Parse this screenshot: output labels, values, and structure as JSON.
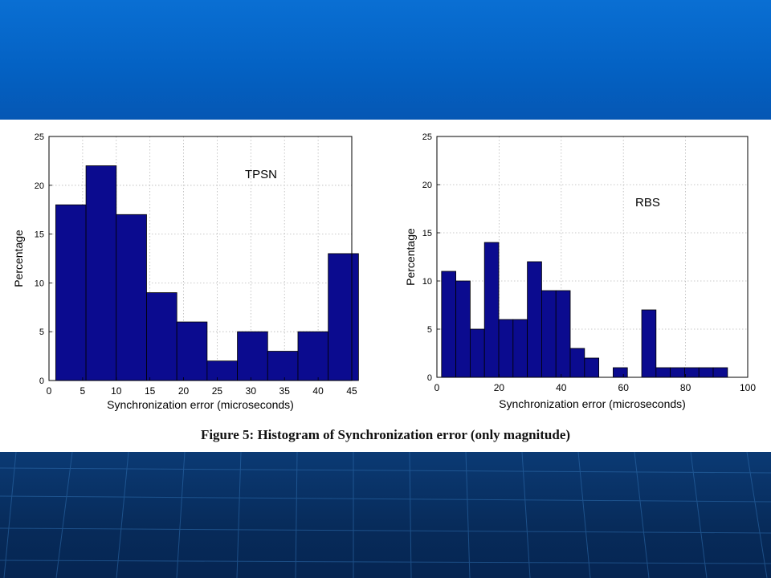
{
  "caption": "Figure 5: Histogram of Synchronization error (only magnitude)",
  "chart_data": [
    {
      "type": "bar",
      "annotation": "TPSN",
      "xlabel": "Synchronization error (microseconds)",
      "ylabel": "Percentage",
      "xlim": [
        0,
        45
      ],
      "ylim": [
        0,
        25
      ],
      "xticks": [
        0,
        5,
        10,
        15,
        20,
        25,
        30,
        35,
        40,
        45
      ],
      "yticks": [
        0,
        5,
        10,
        15,
        20,
        25
      ],
      "grid": true,
      "bar_color": "#0b0b8f",
      "bins": [
        {
          "x0": 1,
          "x1": 5.5,
          "value": 18
        },
        {
          "x0": 5.5,
          "x1": 10,
          "value": 22
        },
        {
          "x0": 10,
          "x1": 14.5,
          "value": 17
        },
        {
          "x0": 14.5,
          "x1": 19,
          "value": 9
        },
        {
          "x0": 19,
          "x1": 23.5,
          "value": 6
        },
        {
          "x0": 23.5,
          "x1": 28,
          "value": 2
        },
        {
          "x0": 28,
          "x1": 32.5,
          "value": 5
        },
        {
          "x0": 32.5,
          "x1": 37,
          "value": 3
        },
        {
          "x0": 37,
          "x1": 41.5,
          "value": 5
        },
        {
          "x0": 41.5,
          "x1": 46,
          "value": 13
        }
      ]
    },
    {
      "type": "bar",
      "annotation": "RBS",
      "xlabel": "Synchronization error (microseconds)",
      "ylabel": "Percentage",
      "xlim": [
        0,
        100
      ],
      "ylim": [
        0,
        25
      ],
      "xticks": [
        0,
        20,
        40,
        60,
        80,
        100
      ],
      "yticks": [
        0,
        5,
        10,
        15,
        20,
        25
      ],
      "grid": true,
      "bar_color": "#0b0b8f",
      "bins": [
        {
          "x0": 1.5,
          "x1": 6.1,
          "value": 11
        },
        {
          "x0": 6.1,
          "x1": 10.7,
          "value": 10
        },
        {
          "x0": 10.7,
          "x1": 15.3,
          "value": 5
        },
        {
          "x0": 15.3,
          "x1": 19.9,
          "value": 14
        },
        {
          "x0": 19.9,
          "x1": 24.5,
          "value": 6
        },
        {
          "x0": 24.5,
          "x1": 29.1,
          "value": 6
        },
        {
          "x0": 29.1,
          "x1": 33.7,
          "value": 12
        },
        {
          "x0": 33.7,
          "x1": 38.3,
          "value": 9
        },
        {
          "x0": 38.3,
          "x1": 42.9,
          "value": 9
        },
        {
          "x0": 42.9,
          "x1": 47.5,
          "value": 3
        },
        {
          "x0": 47.5,
          "x1": 52.1,
          "value": 2
        },
        {
          "x0": 56.7,
          "x1": 61.3,
          "value": 1
        },
        {
          "x0": 65.9,
          "x1": 70.5,
          "value": 7
        },
        {
          "x0": 70.5,
          "x1": 75.1,
          "value": 1
        },
        {
          "x0": 75.1,
          "x1": 79.7,
          "value": 1
        },
        {
          "x0": 79.7,
          "x1": 84.3,
          "value": 1
        },
        {
          "x0": 84.3,
          "x1": 88.9,
          "value": 1
        },
        {
          "x0": 88.9,
          "x1": 93.5,
          "value": 1
        }
      ]
    }
  ]
}
